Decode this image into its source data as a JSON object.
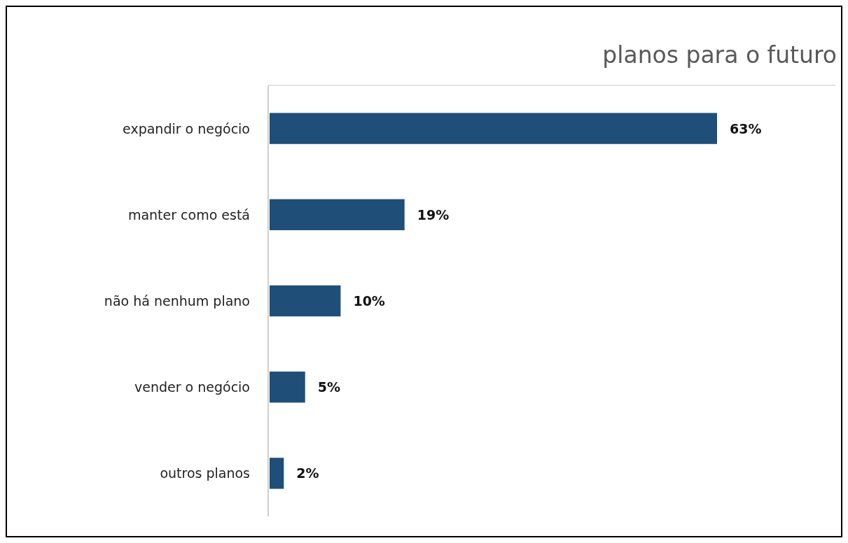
{
  "chart_data": {
    "type": "bar",
    "orientation": "horizontal",
    "title": "planos para o futuro",
    "categories": [
      "expandir o negócio",
      "manter como está",
      "não há nenhum plano",
      "vender o negócio",
      "outros planos"
    ],
    "values": [
      63,
      19,
      10,
      5,
      2
    ],
    "color": "#1f4e79",
    "data_labels": true,
    "value_labels": [
      "63%",
      "19%",
      "10%",
      "5%",
      "2%"
    ],
    "grid": false
  }
}
